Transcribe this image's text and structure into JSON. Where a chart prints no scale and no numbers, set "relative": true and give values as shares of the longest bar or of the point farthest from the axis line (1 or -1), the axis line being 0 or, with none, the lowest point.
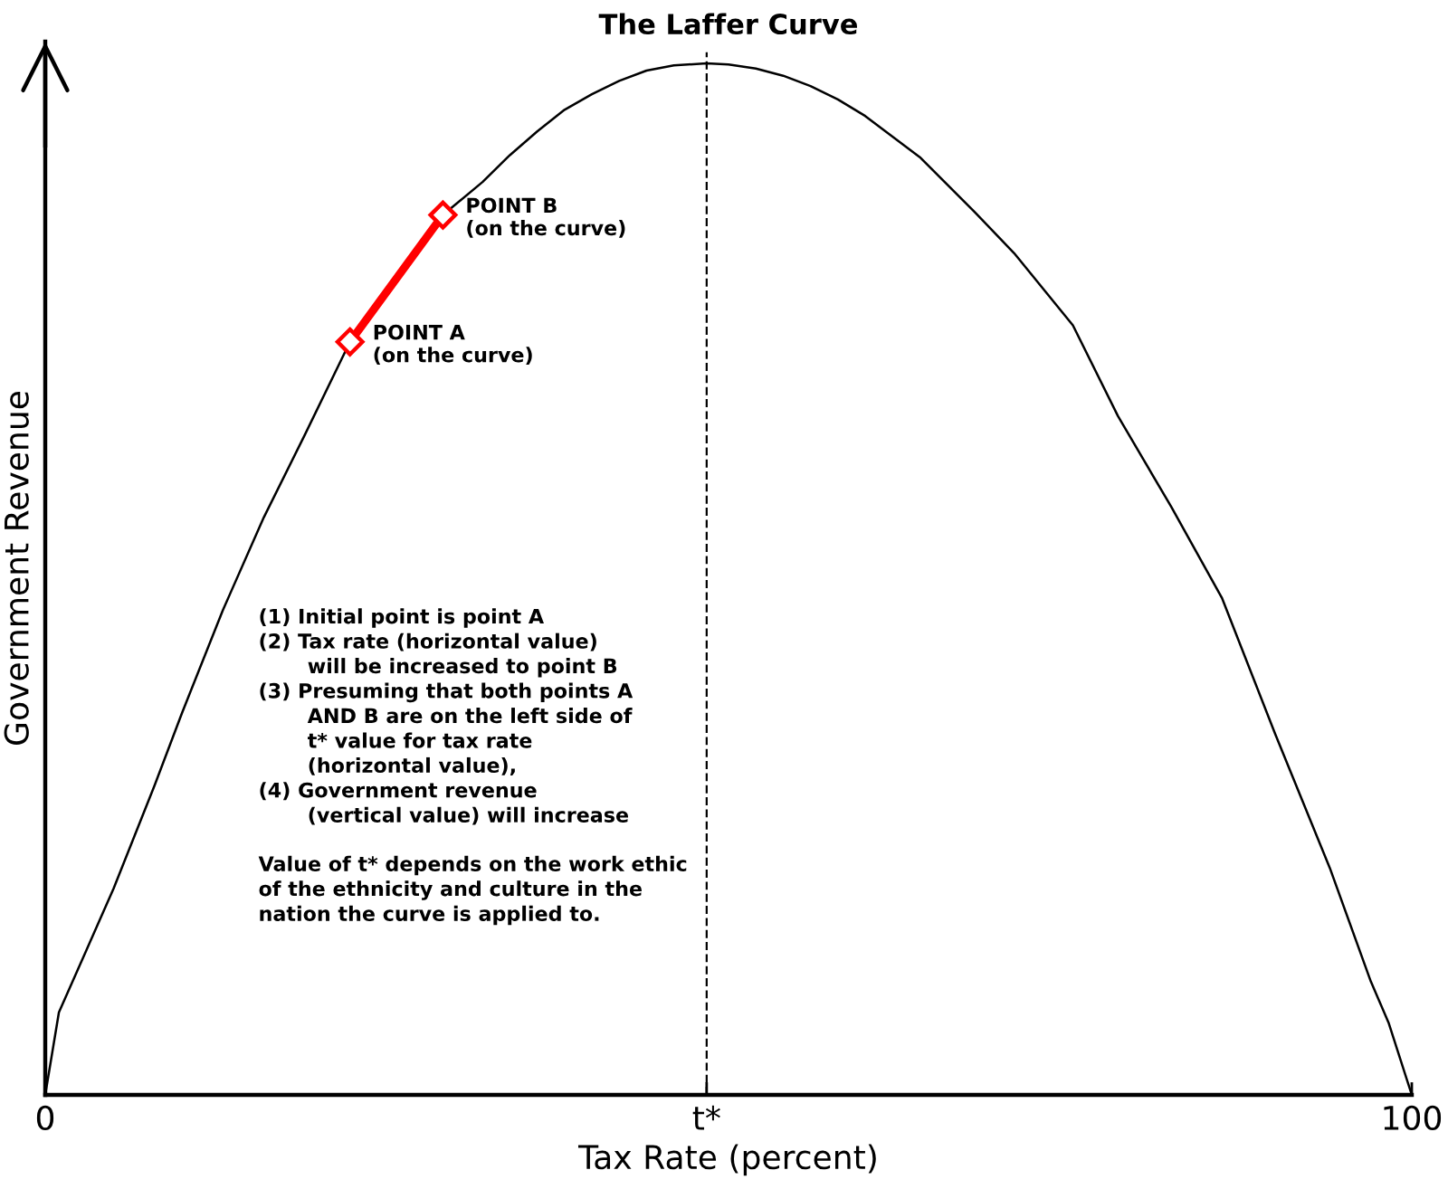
{
  "chart_data": {
    "type": "line",
    "title": "The Laffer Curve",
    "xlabel": "Tax Rate (percent)",
    "ylabel": "Government Revenue",
    "relative": true,
    "xlim": [
      0,
      100
    ],
    "xticks": [
      0,
      {
        "value": 48.4,
        "label": "t*"
      },
      100
    ],
    "grid": false,
    "series": [
      {
        "type": "line",
        "color": "#000000",
        "marker": "none",
        "line_style": "solid",
        "x": [
          0,
          1,
          3,
          5,
          8,
          10,
          13,
          16,
          19,
          22.3,
          25,
          29.1,
          32,
          34,
          36,
          38,
          40,
          42,
          44,
          46,
          48.4,
          50,
          52,
          54,
          56,
          58,
          60,
          64,
          68,
          70.9,
          75.2,
          78.5,
          82.4,
          86.1,
          90,
          94,
          97,
          98.3,
          100
        ],
        "values": [
          0,
          0.08,
          0.14,
          0.2,
          0.3,
          0.37,
          0.47,
          0.56,
          0.64,
          0.73,
          0.78,
          0.853,
          0.885,
          0.911,
          0.934,
          0.955,
          0.97,
          0.983,
          0.993,
          0.998,
          1.0,
          0.999,
          0.995,
          0.988,
          0.978,
          0.965,
          0.949,
          0.909,
          0.856,
          0.816,
          0.746,
          0.658,
          0.57,
          0.482,
          0.35,
          0.22,
          0.11,
          0.07,
          0
        ]
      },
      {
        "type": "line",
        "color": "#ff0000",
        "marker": "diamond",
        "line_style": "solid",
        "x": [
          22.3,
          29.1
        ],
        "values": [
          0.73,
          0.853
        ]
      }
    ],
    "ref_lines": [
      {
        "axis": "x",
        "value": 48.4,
        "color": "#000000",
        "line_style": "dashed"
      }
    ],
    "annotations": [
      {
        "text": "POINT B\n(on the curve)",
        "x": 29.1,
        "y": 0.853
      },
      {
        "text": "POINT A\n(on the curve)",
        "x": 22.3,
        "y": 0.73
      },
      "(1) Initial point is point A\n(2) Tax rate (horizontal value)\n       will be increased to point B\n(3) Presuming that both points A\n       AND B are on the left side of\n       t* value for tax rate\n       (horizontal value),\n(4) Government revenue\n       (vertical value) will increase",
      "Value of t* depends on the work ethic\nof the ethnicity and culture in the\nnation the curve is applied to."
    ]
  }
}
